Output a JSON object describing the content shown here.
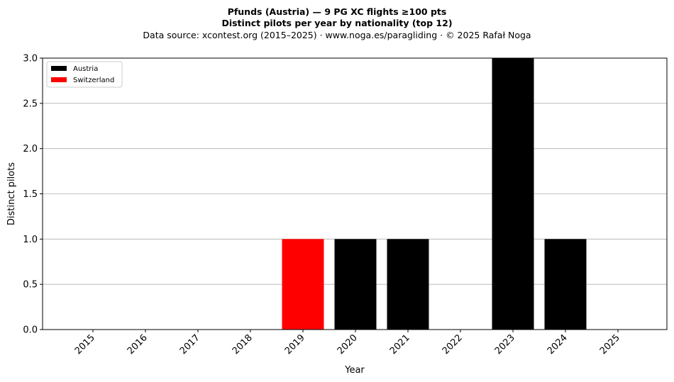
{
  "chart_data": {
    "type": "bar",
    "title": "Pfunds (Austria)  —  9 PG XC flights ≥100 pts",
    "subtitle": "Distinct pilots per year by nationality (top 12)",
    "source_line": "Data source: xcontest.org (2015–2025)  ·  www.noga.es/paragliding  ·  © 2025 Rafał Noga",
    "xlabel": "Year",
    "ylabel": "Distinct pilots",
    "categories": [
      "2015",
      "2016",
      "2017",
      "2018",
      "2019",
      "2020",
      "2021",
      "2022",
      "2023",
      "2024",
      "2025"
    ],
    "series": [
      {
        "name": "Austria",
        "color": "#000000",
        "values": [
          0,
          0,
          0,
          0,
          0,
          1,
          1,
          0,
          3,
          1,
          0
        ]
      },
      {
        "name": "Switzerland",
        "color": "#ff0000",
        "values": [
          0,
          0,
          0,
          0,
          1,
          0,
          0,
          0,
          0,
          0,
          0
        ]
      }
    ],
    "stacked": true,
    "ylim": [
      0,
      3
    ],
    "yticks": [
      "0.0",
      "0.5",
      "1.0",
      "1.5",
      "2.0",
      "2.5",
      "3.0"
    ],
    "ytick_values": [
      0,
      0.5,
      1,
      1.5,
      2,
      2.5,
      3
    ],
    "grid": "y",
    "legend_position": "top-left"
  }
}
